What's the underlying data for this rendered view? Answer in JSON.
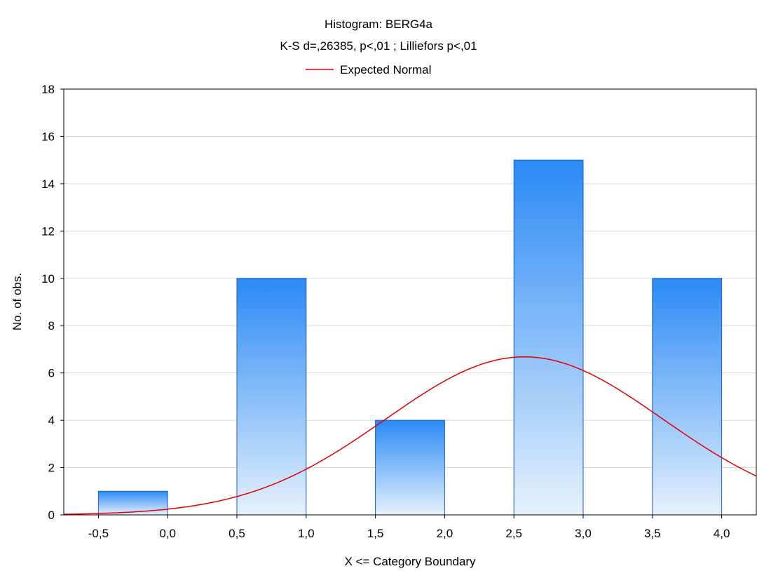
{
  "chart_data": {
    "type": "bar",
    "title": "Histogram: BERG4a",
    "subtitle": "K-S d=,26385, p<,01 ; Lilliefors p<,01",
    "legend": {
      "placement": "top-center",
      "entries": [
        {
          "label": "Expected Normal",
          "color": "#e00000"
        }
      ]
    },
    "xlabel": "X <= Category Boundary",
    "ylabel": "No. of obs.",
    "xlim": [
      -0.75,
      4.25
    ],
    "ylim": [
      0,
      18
    ],
    "x_ticks": [
      -0.5,
      0.0,
      0.5,
      1.0,
      1.5,
      2.0,
      2.5,
      3.0,
      3.5,
      4.0
    ],
    "x_tick_labels": [
      "-0,5",
      "0,0",
      "0,5",
      "1,0",
      "1,5",
      "2,0",
      "2,5",
      "3,0",
      "3,5",
      "4,0"
    ],
    "y_ticks": [
      0,
      2,
      4,
      6,
      8,
      10,
      12,
      14,
      16,
      18
    ],
    "y_tick_labels": [
      "0",
      "2",
      "4",
      "6",
      "8",
      "10",
      "12",
      "14",
      "16",
      "18"
    ],
    "grid": "horizontal",
    "bars": [
      {
        "x0": -0.5,
        "x1": 0.0,
        "value": 1
      },
      {
        "x0": 0.5,
        "x1": 1.0,
        "value": 10
      },
      {
        "x0": 1.5,
        "x1": 2.0,
        "value": 4
      },
      {
        "x0": 2.5,
        "x1": 3.0,
        "value": 15
      },
      {
        "x0": 3.5,
        "x1": 4.0,
        "value": 10
      }
    ],
    "expected_normal": {
      "mean": 2.575,
      "peak": 6.68,
      "sd": 1.0
    },
    "colors": {
      "bar_top": "#2a8af5",
      "bar_bottom": "#e6f1fd",
      "bar_edge": "#1f5fb8",
      "curve": "#e00000",
      "grid": "#d9d9d9"
    }
  }
}
